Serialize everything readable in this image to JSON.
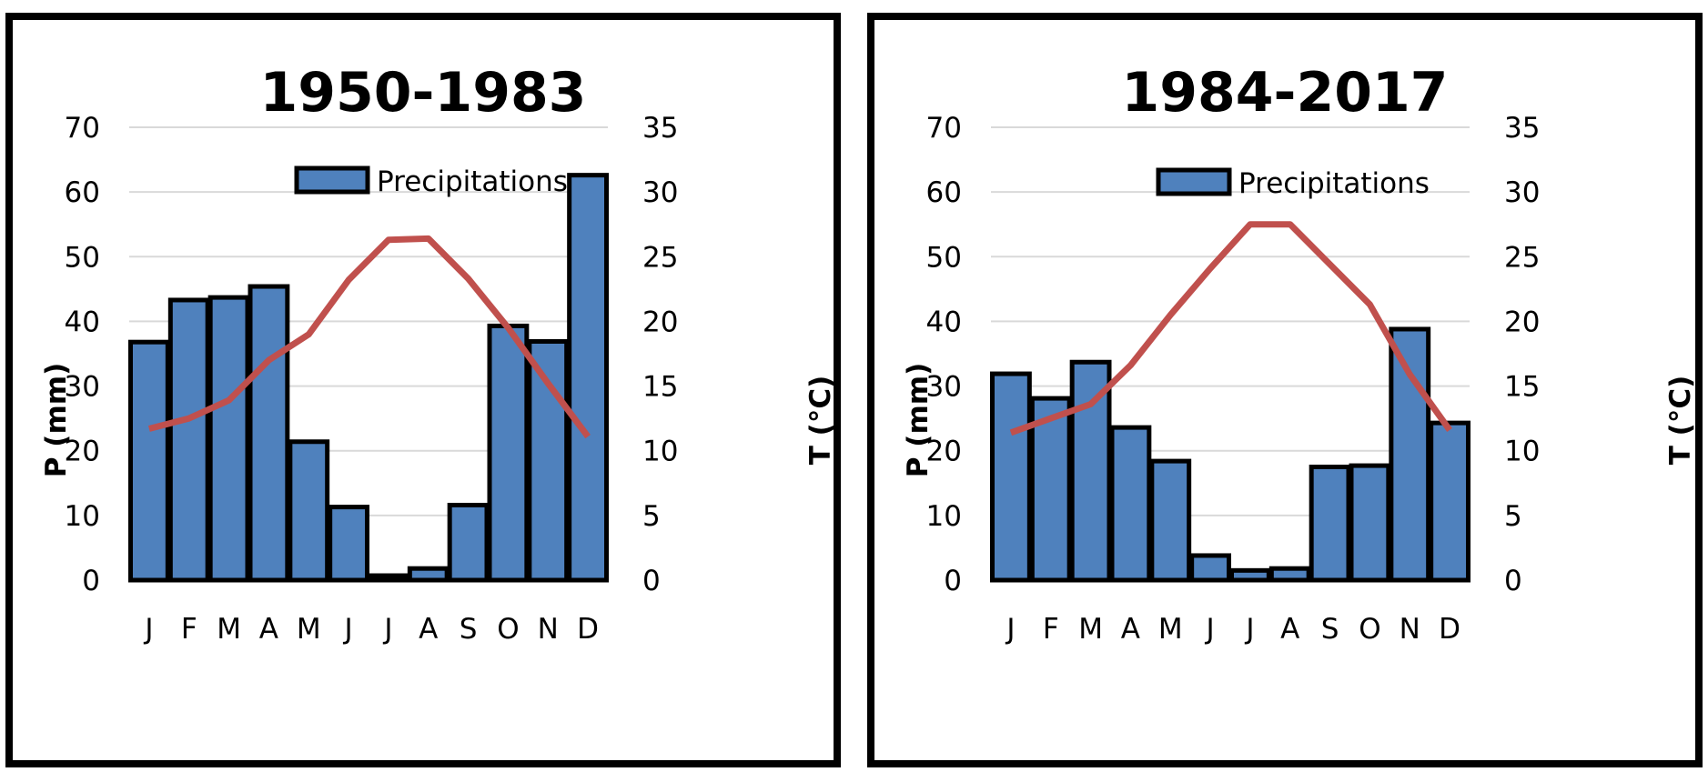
{
  "chart_data": [
    {
      "type": "bar",
      "title": "1950-1983",
      "categories": [
        "J",
        "F",
        "M",
        "A",
        "M",
        "J",
        "J",
        "A",
        "S",
        "O",
        "N",
        "D"
      ],
      "series": [
        {
          "name": "Precipitations",
          "type": "bar",
          "axis": "left",
          "values": [
            36.8,
            43.3,
            43.7,
            45.4,
            21.4,
            11.3,
            0.7,
            1.8,
            11.6,
            39.3,
            36.9,
            62.6
          ]
        },
        {
          "type": "line",
          "axis": "right",
          "values": [
            11.7,
            12.5,
            13.9,
            17.0,
            19.0,
            23.2,
            26.3,
            26.4,
            23.3,
            19.5,
            15.2,
            11.1
          ]
        }
      ],
      "ylabel": "P (mm)",
      "y2label": "T (°C)",
      "ylim": [
        0,
        70
      ],
      "y2lim": [
        0,
        35
      ],
      "yticks": [
        "0",
        "10",
        "20",
        "30",
        "40",
        "50",
        "60",
        "70"
      ],
      "y2ticks": [
        "0",
        "5",
        "10",
        "15",
        "20",
        "25",
        "30",
        "35"
      ],
      "grid": true,
      "legend_position": "top-center",
      "colors": {
        "bar": "#4f81bd",
        "bar_edge": "#000000",
        "line": "#c0504d"
      }
    },
    {
      "type": "bar",
      "title": "1984-2017",
      "categories": [
        "J",
        "F",
        "M",
        "A",
        "M",
        "J",
        "J",
        "A",
        "S",
        "O",
        "N",
        "D"
      ],
      "series": [
        {
          "name": "Precipitations",
          "type": "bar",
          "axis": "left",
          "values": [
            31.9,
            28.1,
            33.7,
            23.6,
            18.4,
            3.8,
            1.5,
            1.8,
            17.5,
            17.7,
            38.8,
            24.3
          ]
        },
        {
          "type": "line",
          "axis": "right",
          "values": [
            11.4,
            12.5,
            13.6,
            16.6,
            20.5,
            24.1,
            27.5,
            27.5,
            24.4,
            21.3,
            15.9,
            11.6
          ]
        }
      ],
      "ylabel": "P (mm)",
      "y2label": "T (°C)",
      "ylim": [
        0,
        70
      ],
      "y2lim": [
        0,
        35
      ],
      "yticks": [
        "0",
        "10",
        "20",
        "30",
        "40",
        "50",
        "60",
        "70"
      ],
      "y2ticks": [
        "0",
        "5",
        "10",
        "15",
        "20",
        "25",
        "30",
        "35"
      ],
      "grid": true,
      "legend_position": "top-center",
      "colors": {
        "bar": "#4f81bd",
        "bar_edge": "#000000",
        "line": "#c0504d"
      }
    }
  ]
}
